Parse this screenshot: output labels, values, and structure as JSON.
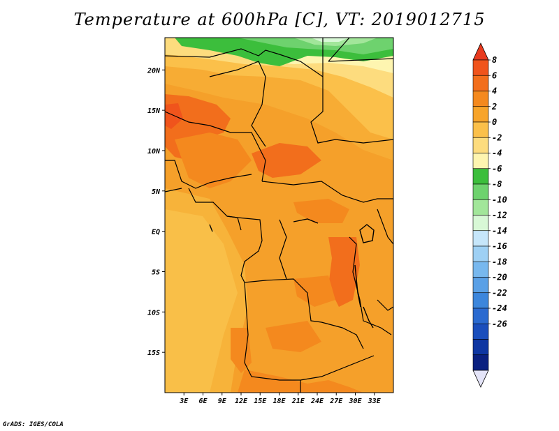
{
  "title": "Temperature at 600hPa [C], VT: 2019012715",
  "credit": "GrADS: IGES/COLA",
  "map": {
    "lon_range": [
      0,
      36
    ],
    "lat_range": [
      -20,
      24
    ],
    "lon_ticks": [
      "3E",
      "6E",
      "9E",
      "12E",
      "15E",
      "18E",
      "21E",
      "24E",
      "27E",
      "30E",
      "33E"
    ],
    "lat_ticks": [
      "20N",
      "15N",
      "10N",
      "5N",
      "EQ",
      "5S",
      "10S",
      "15S"
    ]
  },
  "colorbar": {
    "labels": [
      "8",
      "6",
      "4",
      "2",
      "0",
      "-2",
      "-4",
      "-6",
      "-8",
      "-10",
      "-12",
      "-14",
      "-16",
      "-18",
      "-20",
      "-22",
      "-24",
      "-26"
    ],
    "top_arrow_color": "#e83a1e",
    "bottom_arrow_color": "#e4e4f8",
    "colors": [
      "#f0541c",
      "#f26e1c",
      "#f4891e",
      "#f7a42a",
      "#fbc04a",
      "#fddc7e",
      "#fef5b0",
      "#3cbe3c",
      "#6ed26e",
      "#a2e69a",
      "#d8f8d6",
      "#c6e6fa",
      "#9ed0f4",
      "#78b8ee",
      "#5aa0e6",
      "#3c86dc",
      "#2a6ad0",
      "#1a4ebc",
      "#0e36a2",
      "#0a2080"
    ]
  }
}
